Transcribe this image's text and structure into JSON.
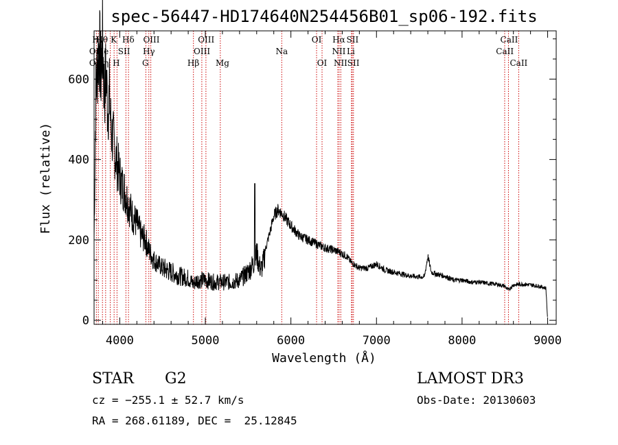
{
  "chart_data": {
    "type": "line",
    "title": "spec-56447-HD174640N254456B01_sp06-192.fits",
    "xlabel": "Wavelength (Å)",
    "ylabel": "Flux (relative)",
    "xlim": [
      3700,
      9100
    ],
    "ylim": [
      -10,
      720
    ],
    "xticks": [
      "4000",
      "5000",
      "6000",
      "7000",
      "8000",
      "9000"
    ],
    "yticks": [
      "0",
      "200",
      "400",
      "600"
    ],
    "xtick_values": [
      4000,
      5000,
      6000,
      7000,
      8000,
      9000
    ],
    "ytick_values": [
      0,
      200,
      400,
      600
    ],
    "grid": false,
    "series": [
      {
        "x": [
          3700,
          3720,
          3740,
          3760,
          3780,
          3800,
          3820,
          3840,
          3860,
          3880,
          3900,
          3930,
          3960,
          3990,
          4020,
          4060,
          4100,
          4150,
          4200,
          4250,
          4300,
          4350,
          4400,
          4450,
          4500,
          4600,
          4700,
          4800,
          4860,
          4900,
          5000,
          5100,
          5200,
          5300,
          5400,
          5500,
          5560,
          5600,
          5640,
          5660,
          5680,
          5700,
          5750,
          5800,
          5850,
          5900,
          5950,
          6000,
          6100,
          6200,
          6300,
          6400,
          6500,
          6560,
          6600,
          6650,
          6700,
          6800,
          6900,
          7000,
          7100,
          7200,
          7300,
          7400,
          7500,
          7560,
          7600,
          7640,
          7700,
          7800,
          7900,
          8000,
          8100,
          8200,
          8300,
          8400,
          8500,
          8540,
          8600,
          8700,
          8800,
          8900,
          8980,
          9000
        ],
        "y": [
          200,
          560,
          640,
          690,
          610,
          700,
          560,
          620,
          520,
          560,
          470,
          440,
          400,
          370,
          340,
          320,
          290,
          260,
          240,
          210,
          200,
          170,
          150,
          140,
          130,
          120,
          110,
          105,
          90,
          100,
          100,
          95,
          95,
          95,
          100,
          120,
          140,
          165,
          130,
          130,
          145,
          175,
          215,
          260,
          275,
          265,
          250,
          235,
          210,
          200,
          190,
          180,
          175,
          170,
          165,
          160,
          145,
          130,
          130,
          140,
          125,
          120,
          115,
          110,
          108,
          108,
          160,
          120,
          115,
          110,
          100,
          100,
          95,
          95,
          92,
          90,
          85,
          75,
          88,
          90,
          88,
          85,
          80,
          0
        ]
      }
    ],
    "lines": [
      {
        "name": "OII",
        "x": 3727
      },
      {
        "name": "H",
        "x": 3750
      },
      {
        "name": "Hθ",
        "x": 3798
      },
      {
        "name": "Hη",
        "x": 3835
      },
      {
        "name": "Hζ",
        "x": 3889
      },
      {
        "name": "K",
        "x": 3934
      },
      {
        "name": "H",
        "x": 3968
      },
      {
        "name": "Hδ",
        "x": 4102
      },
      {
        "name": "SII",
        "x": 4072
      },
      {
        "name": "G",
        "x": 4305
      },
      {
        "name": "Hγ",
        "x": 4340
      },
      {
        "name": "OIII",
        "x": 4363
      },
      {
        "name": "Hβ",
        "x": 4861
      },
      {
        "name": "OIII",
        "x": 4959
      },
      {
        "name": "OIII",
        "x": 5007
      },
      {
        "name": "Mg",
        "x": 5175
      },
      {
        "name": "Na",
        "x": 5893
      },
      {
        "name": "OI",
        "x": 6300
      },
      {
        "name": "OI",
        "x": 6364
      },
      {
        "name": "NII",
        "x": 6548
      },
      {
        "name": "Hα",
        "x": 6563
      },
      {
        "name": "NII",
        "x": 6583
      },
      {
        "name": "Li",
        "x": 6708
      },
      {
        "name": "SII",
        "x": 6716
      },
      {
        "name": "SII",
        "x": 6731
      },
      {
        "name": "CaII",
        "x": 8498
      },
      {
        "name": "CaII",
        "x": 8542
      },
      {
        "name": "CaII",
        "x": 8662
      }
    ],
    "line_labels": [
      {
        "text": "H",
        "x": 3720,
        "row": 0
      },
      {
        "text": "Hθ",
        "x": 3790,
        "row": 0
      },
      {
        "text": "K",
        "x": 3930,
        "row": 0
      },
      {
        "text": "Hδ",
        "x": 4100,
        "row": 0
      },
      {
        "text": "OIII",
        "x": 4370,
        "row": 0
      },
      {
        "text": "OIII",
        "x": 5010,
        "row": 0
      },
      {
        "text": "OI",
        "x": 6300,
        "row": 0
      },
      {
        "text": "Hα",
        "x": 6560,
        "row": 0
      },
      {
        "text": "SII",
        "x": 6720,
        "row": 0
      },
      {
        "text": "CaII",
        "x": 8550,
        "row": 0
      },
      {
        "text": "OII",
        "x": 3720,
        "row": 1
      },
      {
        "text": "He",
        "x": 3800,
        "row": 1
      },
      {
        "text": "SII",
        "x": 4050,
        "row": 1
      },
      {
        "text": "Hγ",
        "x": 4340,
        "row": 1
      },
      {
        "text": "OIII",
        "x": 4960,
        "row": 1
      },
      {
        "text": "Na",
        "x": 5893,
        "row": 1
      },
      {
        "text": "NII",
        "x": 6560,
        "row": 1
      },
      {
        "text": "Li",
        "x": 6700,
        "row": 1
      },
      {
        "text": "CaII",
        "x": 8500,
        "row": 1
      },
      {
        "text": "OII",
        "x": 3720,
        "row": 2
      },
      {
        "text": "Hη",
        "x": 3800,
        "row": 2
      },
      {
        "text": "H",
        "x": 3960,
        "row": 2
      },
      {
        "text": "G",
        "x": 4300,
        "row": 2
      },
      {
        "text": "Hβ",
        "x": 4860,
        "row": 2
      },
      {
        "text": "Mg",
        "x": 5200,
        "row": 2
      },
      {
        "text": "OI",
        "x": 6364,
        "row": 2
      },
      {
        "text": "NII",
        "x": 6580,
        "row": 2
      },
      {
        "text": "SII",
        "x": 6730,
        "row": 2
      },
      {
        "text": "CaII",
        "x": 8662,
        "row": 2
      }
    ],
    "line_color": "#cc0000",
    "spectrum_color": "#000000"
  },
  "info": {
    "class_label": "STAR",
    "subclass_label": "G2",
    "survey": "LAMOST DR3",
    "cz": "cz = −255.1 ± 52.7 km/s",
    "obs_date": "Obs-Date: 20130603",
    "coords": "RA = 268.61189, DEC =  25.12845"
  }
}
